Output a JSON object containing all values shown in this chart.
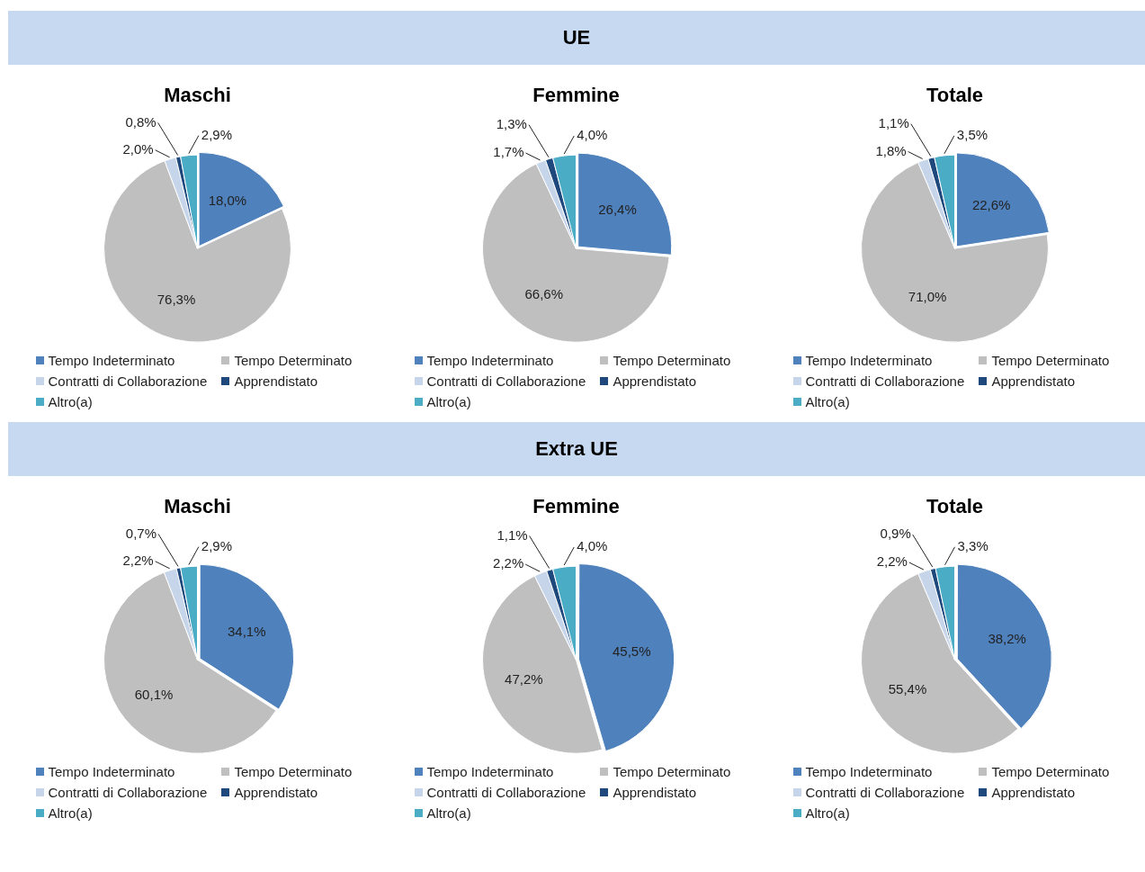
{
  "chart_data": [
    {
      "type": "pie",
      "title": "Maschi",
      "annotations": [
        "UE"
      ],
      "legend": "bottom",
      "categories": [
        "Tempo Indeterminato",
        "Tempo Determinato",
        "Contratti di Collaborazione",
        "Apprendistato",
        "Altro(a)"
      ],
      "colors": [
        "#4f81bd",
        "#bfbfbf",
        "#c6d5ea",
        "#1f497d",
        "#4bacc6"
      ],
      "values": [
        18.0,
        76.3,
        2.0,
        0.8,
        2.9
      ],
      "value_labels": [
        "18,0%",
        "76,3%",
        "2,0%",
        "0,8%",
        "2,9%"
      ]
    },
    {
      "type": "pie",
      "title": "Femmine",
      "legend": "bottom",
      "categories": [
        "Tempo Indeterminato",
        "Tempo Determinato",
        "Contratti di Collaborazione",
        "Apprendistato",
        "Altro(a)"
      ],
      "colors": [
        "#4f81bd",
        "#bfbfbf",
        "#c6d5ea",
        "#1f497d",
        "#4bacc6"
      ],
      "values": [
        26.4,
        66.6,
        1.7,
        1.3,
        4.0
      ],
      "value_labels": [
        "26,4%",
        "66,6%",
        "1,7%",
        "1,3%",
        "4,0%"
      ]
    },
    {
      "type": "pie",
      "title": "Totale",
      "legend": "bottom",
      "categories": [
        "Tempo Indeterminato",
        "Tempo Determinato",
        "Contratti di Collaborazione",
        "Apprendistato",
        "Altro(a)"
      ],
      "colors": [
        "#4f81bd",
        "#bfbfbf",
        "#c6d5ea",
        "#1f497d",
        "#4bacc6"
      ],
      "values": [
        22.6,
        71.0,
        1.8,
        1.1,
        3.5
      ],
      "value_labels": [
        "22,6%",
        "71,0%",
        "1,8%",
        "1,1%",
        "3,5%"
      ]
    },
    {
      "type": "pie",
      "title": "Maschi",
      "annotations": [
        "Extra UE"
      ],
      "legend": "bottom",
      "categories": [
        "Tempo Indeterminato",
        "Tempo Determinato",
        "Contratti di Collaborazione",
        "Apprendistato",
        "Altro(a)"
      ],
      "colors": [
        "#4f81bd",
        "#bfbfbf",
        "#c6d5ea",
        "#1f497d",
        "#4bacc6"
      ],
      "values": [
        34.1,
        60.1,
        2.2,
        0.7,
        2.9
      ],
      "value_labels": [
        "34,1%",
        "60,1%",
        "2,2%",
        "0,7%",
        "2,9%"
      ]
    },
    {
      "type": "pie",
      "title": "Femmine",
      "legend": "bottom",
      "categories": [
        "Tempo Indeterminato",
        "Tempo Determinato",
        "Contratti di Collaborazione",
        "Apprendistato",
        "Altro(a)"
      ],
      "colors": [
        "#4f81bd",
        "#bfbfbf",
        "#c6d5ea",
        "#1f497d",
        "#4bacc6"
      ],
      "values": [
        45.5,
        47.2,
        2.2,
        1.1,
        4.0
      ],
      "value_labels": [
        "45,5%",
        "47,2%",
        "2,2%",
        "1,1%",
        "4,0%"
      ]
    },
    {
      "type": "pie",
      "title": "Totale",
      "legend": "bottom",
      "categories": [
        "Tempo Indeterminato",
        "Tempo Determinato",
        "Contratti di Collaborazione",
        "Apprendistato",
        "Altro(a)"
      ],
      "colors": [
        "#4f81bd",
        "#bfbfbf",
        "#c6d5ea",
        "#1f497d",
        "#4bacc6"
      ],
      "values": [
        38.2,
        55.4,
        2.2,
        0.9,
        3.3
      ],
      "value_labels": [
        "38,2%",
        "55,4%",
        "2,2%",
        "0,9%",
        "3,3%"
      ]
    }
  ]
}
